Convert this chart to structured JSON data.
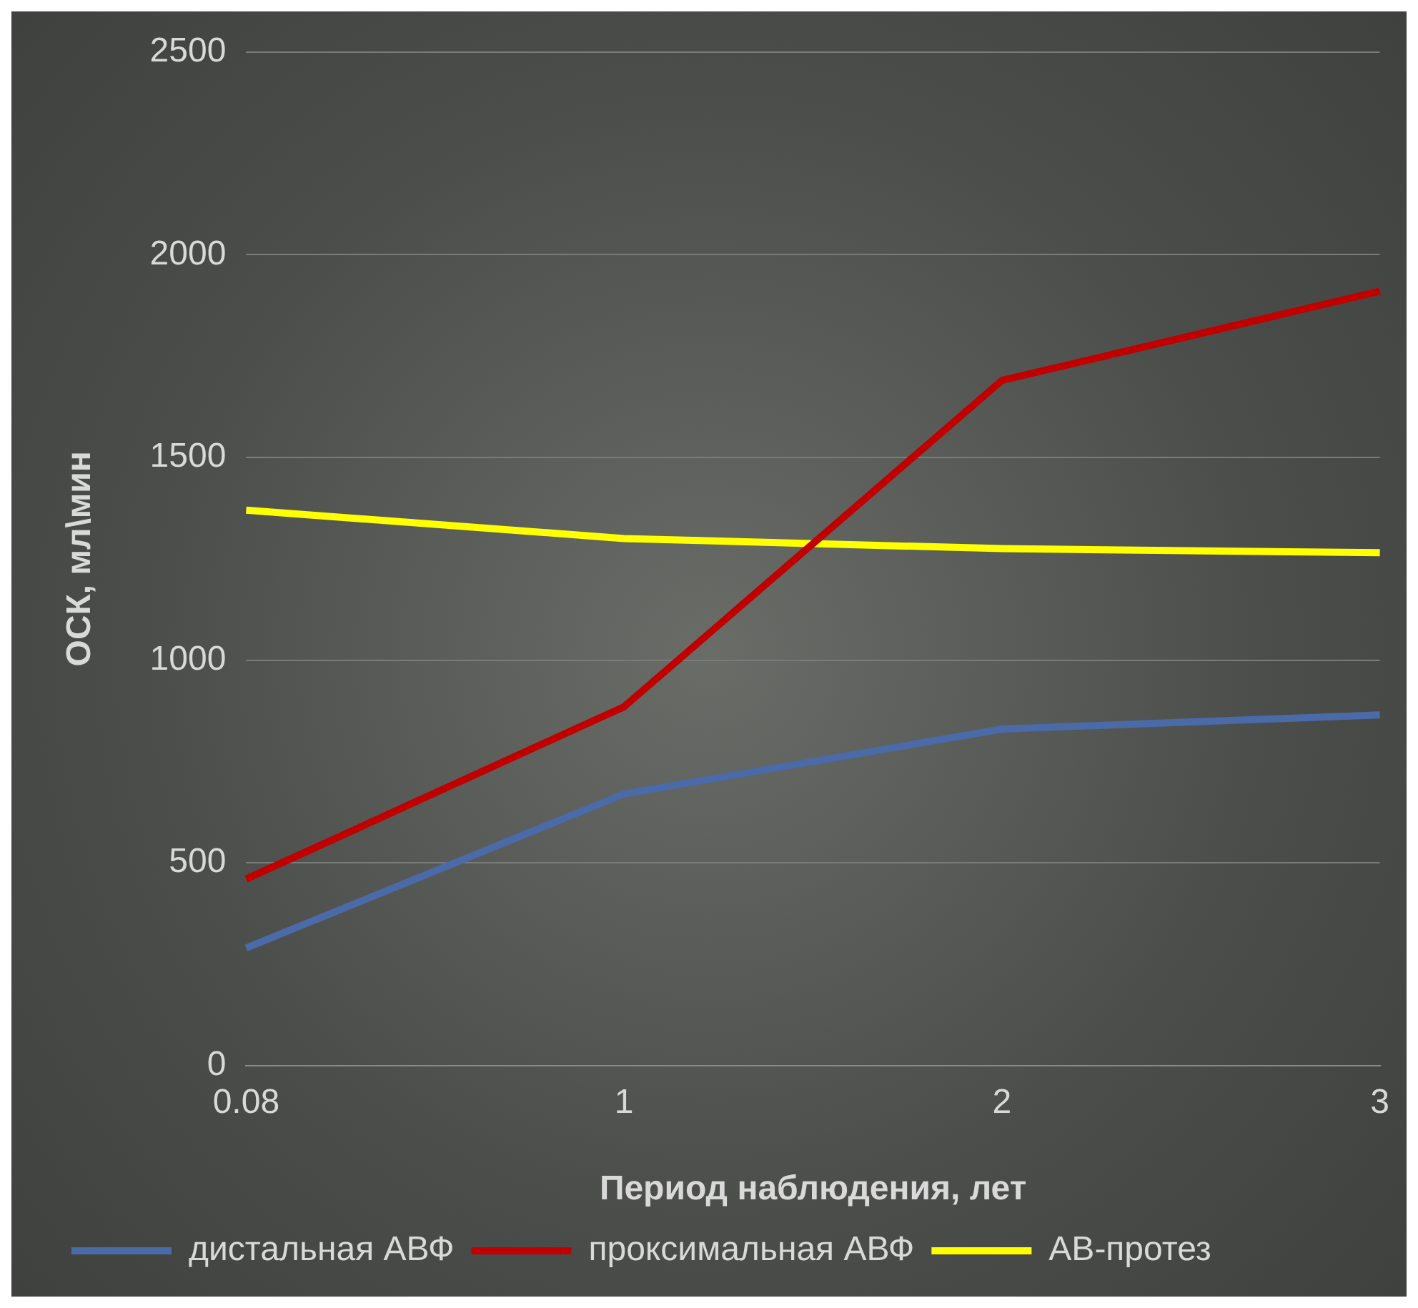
{
  "chart_data": {
    "type": "line",
    "xlabel": "Период наблюдения, лет",
    "ylabel": "ОСК, мл\\мин",
    "categories": [
      "0.08",
      "1",
      "2",
      "3"
    ],
    "series": [
      {
        "name": "дистальная АВФ",
        "color": "#4a6aa8",
        "values": [
          290,
          670,
          830,
          865
        ]
      },
      {
        "name": "проксимальная АВФ",
        "color": "#c00000",
        "values": [
          460,
          885,
          1690,
          1910
        ]
      },
      {
        "name": "АВ-протез",
        "color": "#ffff00",
        "values": [
          1370,
          1300,
          1275,
          1265
        ]
      }
    ],
    "ylim": [
      0,
      2500
    ],
    "yticks": [
      0,
      500,
      1000,
      1500,
      2000,
      2500
    ],
    "grid": "y",
    "legend": "bottom",
    "marker": "none"
  }
}
